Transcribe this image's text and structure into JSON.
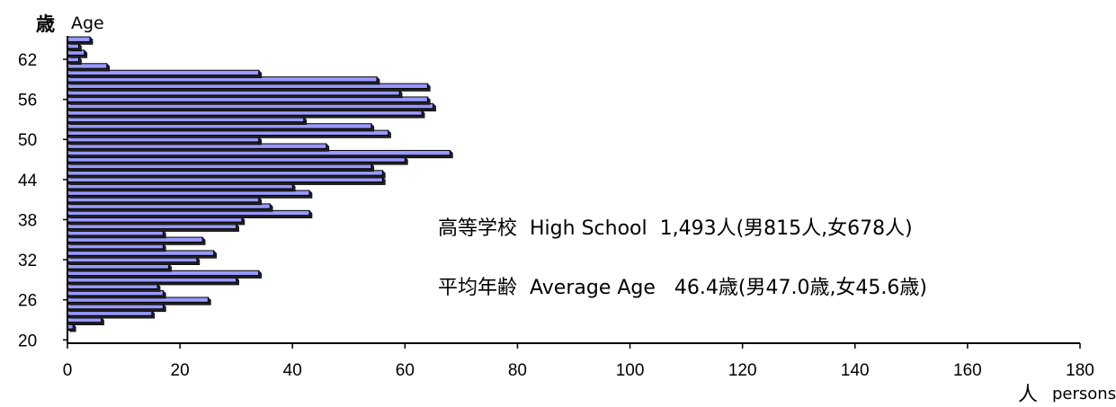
{
  "chart_data": {
    "type": "bar",
    "orientation": "horizontal",
    "ylabel_kanji": "歳",
    "ylabel": "Age",
    "xlabel_kanji": "人",
    "xlabel": "persons",
    "xlim": [
      0,
      180
    ],
    "ylim": [
      20,
      65
    ],
    "x_ticks": [
      "0",
      "20",
      "40",
      "60",
      "80",
      "100",
      "120",
      "140",
      "160",
      "180"
    ],
    "y_ticks": [
      "20",
      "26",
      "32",
      "38",
      "44",
      "50",
      "56",
      "62"
    ],
    "bar_color": "#9999ff",
    "ages": [
      20,
      21,
      22,
      23,
      24,
      25,
      26,
      27,
      28,
      29,
      30,
      31,
      32,
      33,
      34,
      35,
      36,
      37,
      38,
      39,
      40,
      41,
      42,
      43,
      44,
      45,
      46,
      47,
      48,
      49,
      50,
      51,
      52,
      53,
      54,
      55,
      56,
      57,
      58,
      59,
      60,
      61,
      62,
      63,
      64,
      65
    ],
    "values": [
      0,
      0,
      1,
      6,
      15,
      17,
      25,
      17,
      16,
      30,
      34,
      18,
      23,
      26,
      17,
      24,
      17,
      30,
      31,
      43,
      36,
      34,
      43,
      40,
      56,
      56,
      54,
      60,
      68,
      46,
      34,
      57,
      54,
      42,
      63,
      65,
      64,
      59,
      64,
      55,
      34,
      7,
      2,
      3,
      2,
      4
    ],
    "annotations": [
      {
        "label": "高等学校",
        "name": "High School",
        "value": "1,493人(男815人,女678人)"
      },
      {
        "label": "平均年齢",
        "name": "Average Age",
        "value": "46.4歳(男47.0歳,女45.6歳)"
      }
    ]
  }
}
